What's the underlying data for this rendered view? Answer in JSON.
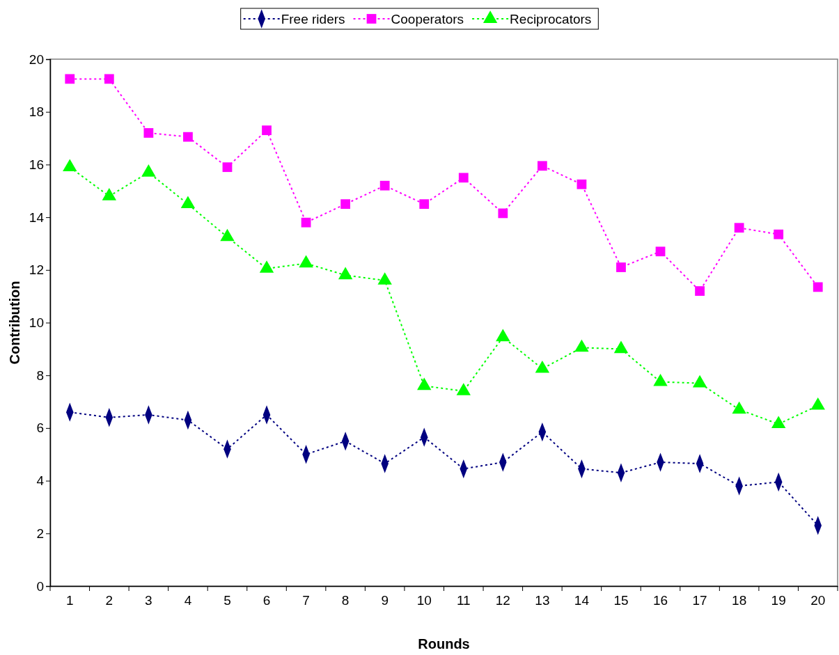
{
  "chart_data": {
    "type": "line",
    "xlabel": "Rounds",
    "ylabel": "Contribution",
    "categories": [
      "1",
      "2",
      "3",
      "4",
      "5",
      "6",
      "7",
      "8",
      "9",
      "10",
      "11",
      "12",
      "13",
      "14",
      "15",
      "16",
      "17",
      "18",
      "19",
      "20"
    ],
    "series": [
      {
        "name": "Free riders",
        "color": "#000080",
        "marker": "diamond",
        "values": [
          6.6,
          6.4,
          6.5,
          6.3,
          5.2,
          6.5,
          5.0,
          5.5,
          4.65,
          5.65,
          4.45,
          4.7,
          5.85,
          4.45,
          4.3,
          4.7,
          4.65,
          3.8,
          3.95,
          2.3
        ]
      },
      {
        "name": "Cooperators",
        "color": "#ff00ff",
        "marker": "square",
        "values": [
          19.25,
          19.25,
          17.2,
          17.05,
          15.9,
          17.3,
          13.8,
          14.5,
          15.2,
          14.5,
          15.5,
          14.15,
          15.95,
          15.25,
          12.1,
          12.7,
          11.2,
          13.6,
          13.35,
          11.35
        ]
      },
      {
        "name": "Reciprocators",
        "color": "#00ff00",
        "marker": "triangle",
        "values": [
          15.9,
          14.8,
          15.7,
          14.5,
          13.25,
          12.05,
          12.25,
          11.8,
          11.6,
          7.6,
          7.4,
          9.45,
          8.25,
          9.05,
          9.0,
          7.75,
          7.7,
          6.7,
          6.15,
          6.85
        ]
      }
    ],
    "ylim": [
      0,
      20
    ],
    "yticks": [
      0,
      2,
      4,
      6,
      8,
      10,
      12,
      14,
      16,
      18,
      20
    ],
    "grid": false,
    "legend": "top",
    "line_style": "dotted"
  }
}
